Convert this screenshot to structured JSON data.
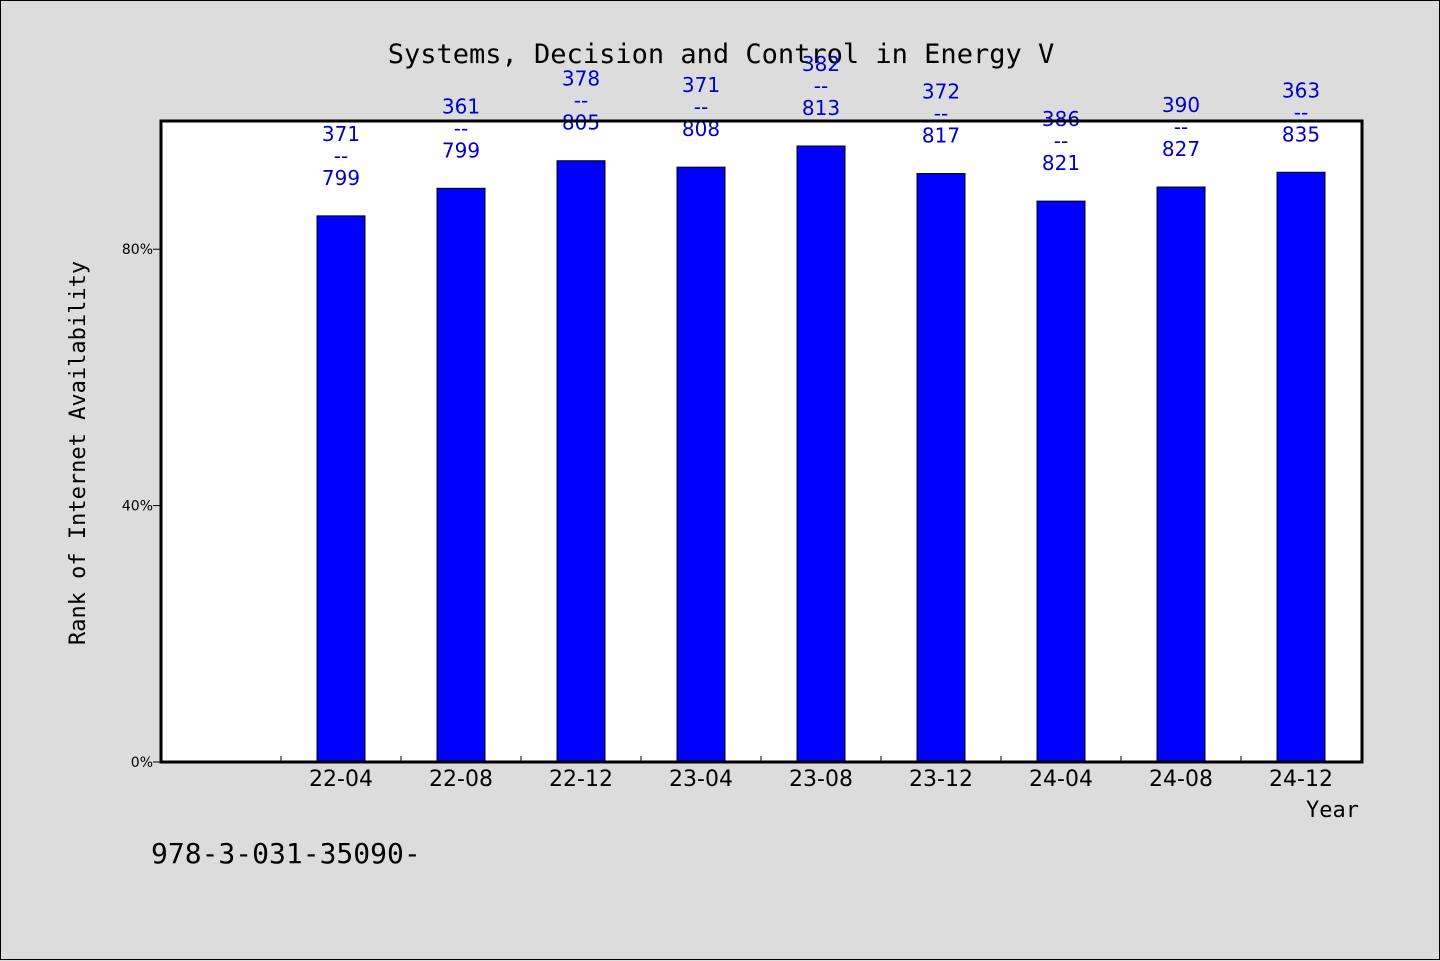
{
  "chart_data": {
    "type": "bar",
    "title": "Systems, Decision and Control in Energy V",
    "xlabel": "Year",
    "ylabel": "Rank of Internet Availability",
    "categories": [
      "22-04",
      "22-08",
      "22-12",
      "23-04",
      "23-08",
      "23-12",
      "24-04",
      "24-08",
      "24-12"
    ],
    "values": [
      85.2,
      89.5,
      93.8,
      92.8,
      96.1,
      91.8,
      87.5,
      89.7,
      92.0
    ],
    "data_labels": [
      [
        "371",
        "--",
        "799"
      ],
      [
        "361",
        "--",
        "799"
      ],
      [
        "378",
        "--",
        "805"
      ],
      [
        "371",
        "--",
        "808"
      ],
      [
        "382",
        "--",
        "813"
      ],
      [
        "372",
        "--",
        "817"
      ],
      [
        "386",
        "--",
        "821"
      ],
      [
        "390",
        "--",
        "827"
      ],
      [
        "363",
        "--",
        "835"
      ]
    ],
    "yticks": [
      0,
      40,
      80
    ],
    "ytick_labels": [
      "0%",
      "40%",
      "80%"
    ],
    "ylim": [
      0,
      100
    ],
    "grid": false,
    "legend": "none",
    "bar_color": "#0000ff",
    "label_color": "#0000cc",
    "background": "#dcdcdc",
    "plot_background": "#ffffff"
  },
  "footer": "978-3-031-35090-"
}
